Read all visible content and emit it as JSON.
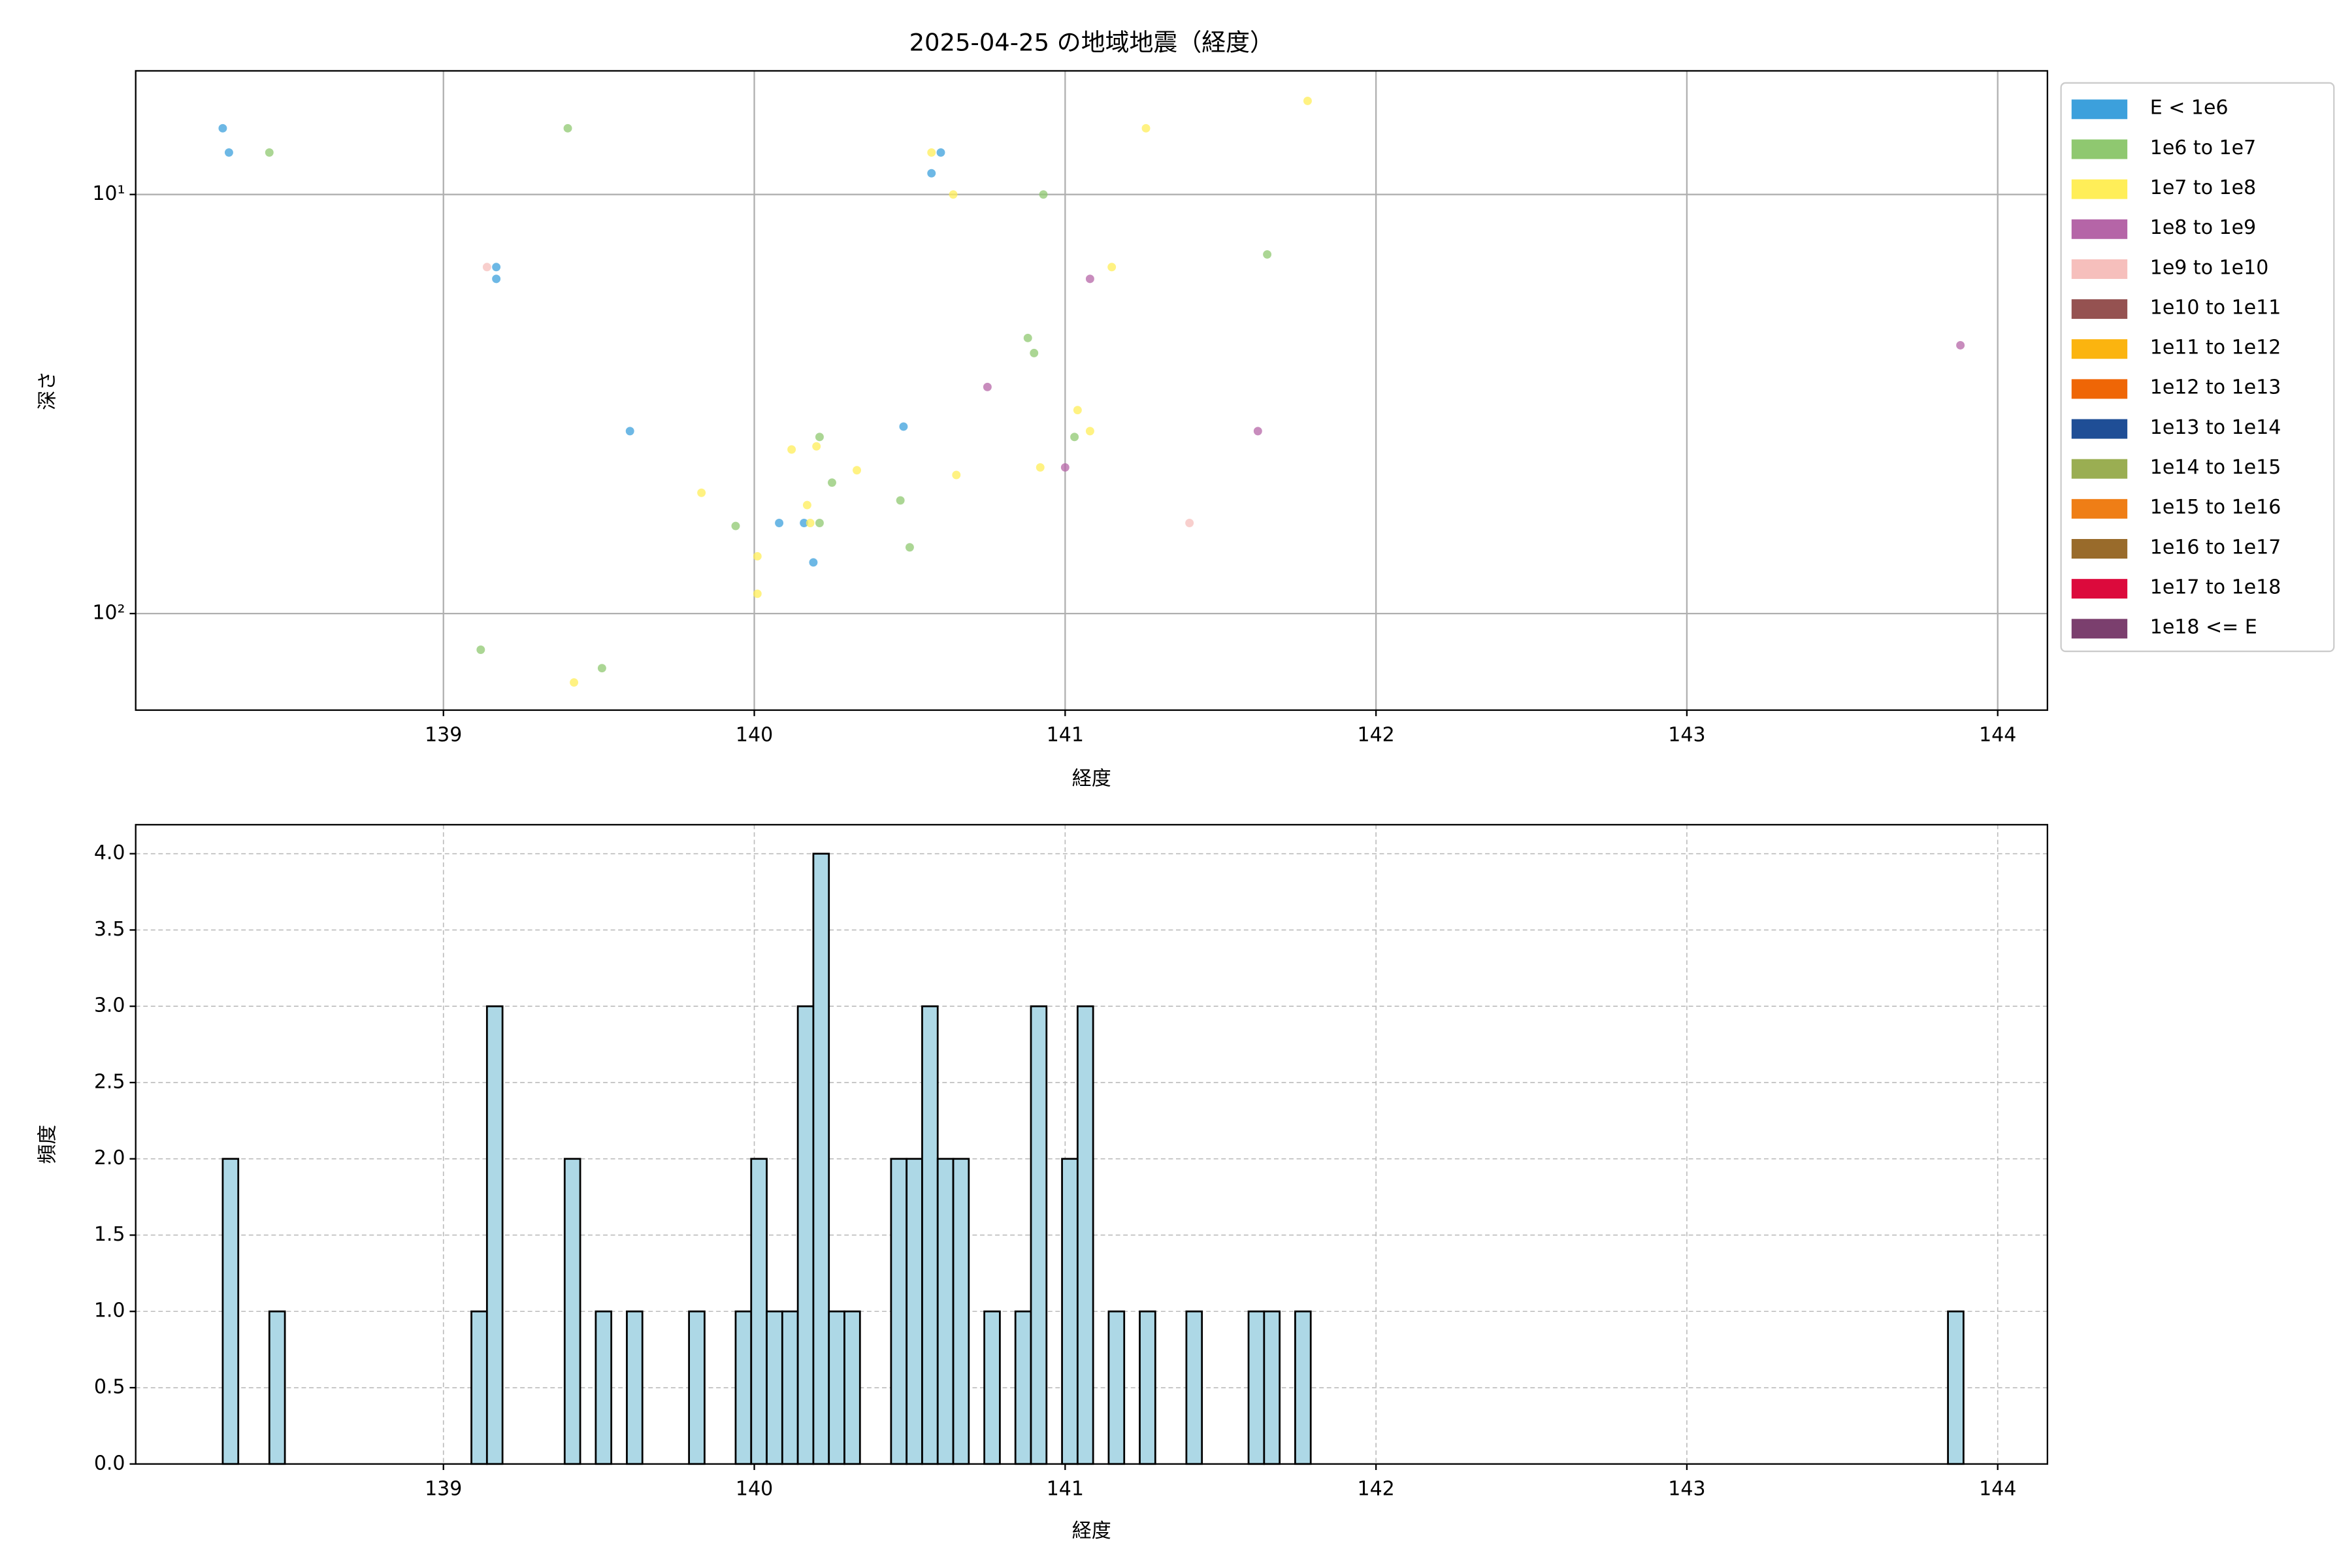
{
  "chart_data": [
    {
      "type": "scatter",
      "title": "2025-04-25 の地域地震（経度）",
      "xlabel": "経度",
      "ylabel": "深さ",
      "xlim": [
        138.01,
        144.16
      ],
      "xticks": [
        139,
        140,
        141,
        142,
        143,
        144
      ],
      "ylim": [
        5.07,
        170
      ],
      "yscale": "log",
      "yinvert": true,
      "yticks": [
        {
          "value": 10,
          "label": "10¹"
        },
        {
          "value": 100,
          "label": "10²"
        }
      ],
      "grid": true,
      "series": [
        {
          "name": "E < 1e6",
          "color": "#3ca0dc",
          "x": [
            138.29,
            138.31,
            139.17,
            139.17,
            139.6,
            140.48,
            140.08,
            140.16,
            140.19,
            140.57,
            140.6
          ],
          "y": [
            6.95,
            7.94,
            14.9,
            15.9,
            36.7,
            35.8,
            60.8,
            60.8,
            75.5,
            8.9,
            7.94
          ]
        },
        {
          "name": "1e6 to 1e7",
          "color": "#8fc870",
          "x": [
            138.44,
            139.4,
            140.93,
            141.65,
            140.88,
            140.9,
            141.03,
            140.21,
            140.25,
            140.47,
            139.94,
            140.21,
            140.5,
            139.12,
            139.51
          ],
          "y": [
            7.94,
            6.95,
            10.0,
            13.9,
            22.0,
            23.9,
            37.9,
            37.9,
            48.7,
            53.7,
            61.8,
            60.8,
            69.5,
            122,
            135
          ]
        },
        {
          "name": "1e7 to 1e8",
          "color": "#ffee58",
          "x": [
            141.78,
            141.26,
            140.57,
            140.64,
            141.15,
            141.04,
            141.08,
            140.2,
            140.12,
            140.33,
            140.65,
            140.92,
            139.83,
            140.17,
            140.18,
            140.01,
            140.01,
            139.42
          ],
          "y": [
            5.98,
            6.95,
            7.94,
            10.0,
            14.9,
            32.7,
            36.7,
            39.9,
            40.6,
            45.5,
            46.7,
            44.8,
            51.5,
            55.1,
            60.8,
            73.0,
            89.7,
            146
          ]
        },
        {
          "name": "1e8 to 1e9",
          "color": "#b565a7",
          "x": [
            141.08,
            143.88,
            140.75,
            141.62,
            141.0
          ],
          "y": [
            15.9,
            22.9,
            28.8,
            36.7,
            44.8
          ]
        },
        {
          "name": "1e9 to 1e10",
          "color": "#f6bfbc",
          "x": [
            139.14,
            141.4
          ],
          "y": [
            14.9,
            60.8
          ]
        },
        {
          "name": "1e10 to 1e11",
          "color": "#955251",
          "x": [],
          "y": []
        },
        {
          "name": "1e11 to 1e12",
          "color": "#fbb40f",
          "x": [],
          "y": []
        },
        {
          "name": "1e12 to 1e13",
          "color": "#ef6606",
          "x": [],
          "y": []
        },
        {
          "name": "1e13 to 1e14",
          "color": "#1f4e96",
          "x": [],
          "y": []
        },
        {
          "name": "1e14 to 1e15",
          "color": "#9aae52",
          "x": [],
          "y": []
        },
        {
          "name": "1e15 to 1e16",
          "color": "#ef7e16",
          "x": [],
          "y": []
        },
        {
          "name": "1e16 to 1e17",
          "color": "#996b2b",
          "x": [],
          "y": []
        },
        {
          "name": "1e17 to 1e18",
          "color": "#dc0a3c",
          "x": [],
          "y": []
        },
        {
          "name": "1e18 <= E",
          "color": "#7b3f6e",
          "x": [],
          "y": []
        }
      ]
    },
    {
      "type": "histogram",
      "xlabel": "経度",
      "ylabel": "頻度",
      "color": "#add8e6",
      "edgecolor": "#000000",
      "xlim": [
        138.01,
        144.16
      ],
      "xticks": [
        139,
        140,
        141,
        142,
        143,
        144
      ],
      "ylim": [
        0,
        4.19
      ],
      "yticks": [
        {
          "value": 0,
          "label": "0.0"
        },
        {
          "value": 0.5,
          "label": "0.5"
        },
        {
          "value": 1,
          "label": "1.0"
        },
        {
          "value": 1.5,
          "label": "1.5"
        },
        {
          "value": 2,
          "label": "2.0"
        },
        {
          "value": 2.5,
          "label": "2.5"
        },
        {
          "value": 3,
          "label": "3.0"
        },
        {
          "value": 3.5,
          "label": "3.5"
        },
        {
          "value": 4,
          "label": "4.0"
        }
      ],
      "grid": "dashed",
      "bins": [
        138.29,
        138.34,
        138.39,
        138.44,
        138.49,
        138.54,
        138.59,
        138.64,
        138.69,
        138.74,
        138.79,
        138.84,
        138.89,
        138.94,
        138.99,
        139.04,
        139.09,
        139.14,
        139.19,
        139.24,
        139.29,
        139.34,
        139.39,
        139.44,
        139.49,
        139.54,
        139.59,
        139.64,
        139.69,
        139.74,
        139.79,
        139.84,
        139.89,
        139.94,
        139.99,
        140.04,
        140.09,
        140.14,
        140.19,
        140.24,
        140.29,
        140.34,
        140.39,
        140.44,
        140.49,
        140.54,
        140.59,
        140.64,
        140.69,
        140.74,
        140.79,
        140.84,
        140.89,
        140.94,
        140.99,
        141.04,
        141.09,
        141.14,
        141.19,
        141.24,
        141.29,
        141.34,
        141.39,
        141.44,
        141.49,
        141.54,
        141.59,
        141.64,
        141.69,
        141.74,
        141.79,
        141.84,
        141.89,
        141.94,
        141.99,
        142.04,
        142.09,
        142.14,
        142.19,
        142.24,
        142.29,
        142.34,
        142.39,
        142.44,
        142.49,
        142.54,
        142.59,
        142.64,
        142.69,
        142.74,
        142.79,
        142.84,
        142.89,
        142.94,
        142.99,
        143.04,
        143.09,
        143.14,
        143.19,
        143.24,
        143.29,
        143.34,
        143.39,
        143.44,
        143.49,
        143.54,
        143.59,
        143.64,
        143.69,
        143.74,
        143.79,
        143.84,
        143.89
      ],
      "counts": [
        2,
        0,
        0,
        1,
        0,
        0,
        0,
        0,
        0,
        0,
        0,
        0,
        0,
        0,
        0,
        0,
        1,
        3,
        0,
        0,
        0,
        0,
        2,
        0,
        1,
        0,
        1,
        0,
        0,
        0,
        1,
        0,
        0,
        1,
        2,
        1,
        1,
        3,
        4,
        1,
        1,
        0,
        0,
        2,
        2,
        3,
        2,
        2,
        0,
        1,
        0,
        1,
        3,
        0,
        2,
        3,
        0,
        1,
        0,
        1,
        0,
        0,
        1,
        0,
        0,
        0,
        1,
        1,
        0,
        1,
        0,
        0,
        0,
        0,
        0,
        0,
        0,
        0,
        0,
        0,
        0,
        0,
        0,
        0,
        0,
        0,
        0,
        0,
        0,
        0,
        0,
        0,
        0,
        0,
        0,
        0,
        0,
        0,
        0,
        0,
        0,
        0,
        0,
        0,
        0,
        0,
        0,
        0,
        0,
        0,
        0,
        1
      ]
    }
  ]
}
